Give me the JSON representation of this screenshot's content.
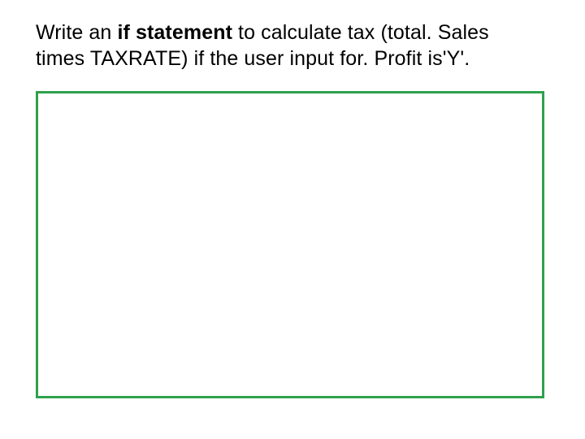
{
  "question": {
    "part1": "Write an ",
    "bold": "if statement",
    "part2": " to calculate tax (total. Sales times TAXRATE) if the user input for. Profit is'Y'."
  },
  "answer_box": {
    "border_color": "#2fa04d",
    "background_color": "#ffffff"
  },
  "slide_background": "#ffffff"
}
